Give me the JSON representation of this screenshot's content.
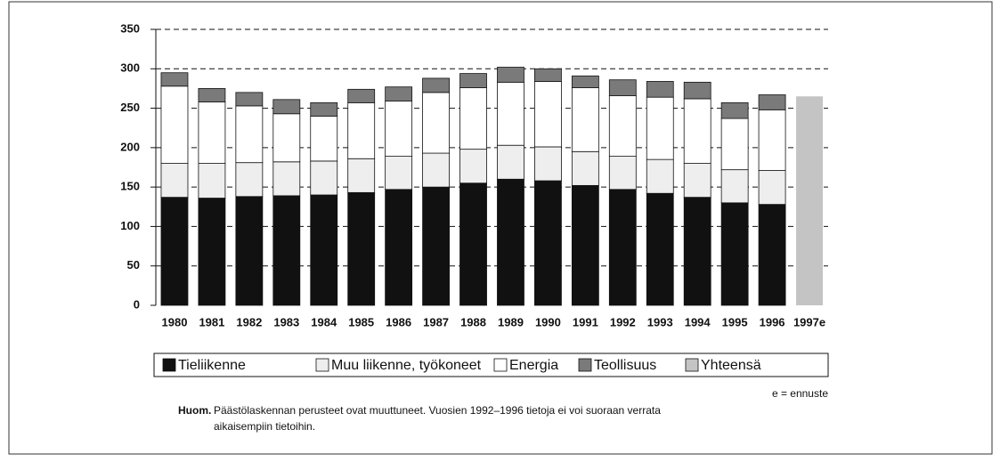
{
  "chart_data": {
    "type": "stacked_bar",
    "categories": [
      "1980",
      "1981",
      "1982",
      "1983",
      "1984",
      "1985",
      "1986",
      "1987",
      "1988",
      "1989",
      "1990",
      "1991",
      "1992",
      "1993",
      "1994",
      "1995",
      "1996",
      "1997e"
    ],
    "series": [
      {
        "name": "Tieliikenne",
        "color": "#111111",
        "values": [
          137,
          136,
          138,
          139,
          140,
          143,
          147,
          150,
          155,
          160,
          158,
          152,
          147,
          142,
          137,
          130,
          128,
          null
        ]
      },
      {
        "name": "Muu liikenne, työkoneet",
        "color": "#eeeeee",
        "values": [
          43,
          44,
          43,
          43,
          43,
          43,
          42,
          43,
          43,
          43,
          43,
          43,
          42,
          43,
          43,
          42,
          43,
          null
        ]
      },
      {
        "name": "Energia",
        "color": "#ffffff",
        "values": [
          98,
          78,
          72,
          61,
          57,
          71,
          70,
          77,
          78,
          80,
          83,
          81,
          77,
          79,
          82,
          65,
          77,
          null
        ]
      },
      {
        "name": "Teollisuus",
        "color": "#7a7a7a",
        "values": [
          17,
          17,
          17,
          18,
          17,
          17,
          18,
          18,
          18,
          19,
          16,
          15,
          20,
          20,
          21,
          20,
          19,
          null
        ]
      },
      {
        "name": "Yhteensä",
        "color": "#c4c4c4",
        "values": [
          null,
          null,
          null,
          null,
          null,
          null,
          null,
          null,
          null,
          null,
          null,
          null,
          null,
          null,
          null,
          null,
          null,
          265
        ]
      }
    ],
    "ylim": [
      0,
      350
    ],
    "yticks": [
      0,
      50,
      100,
      150,
      200,
      250,
      300,
      350
    ],
    "grid": true,
    "legend": "bottom",
    "annotation": "e = ennuste",
    "note_label": "Huom.",
    "note": "Päästölaskennan perusteet ovat muuttuneet. Vuosien 1992–1996 tietoja ei voi suoraan verrata",
    "note_cont": "aikaisempiin tietoihin."
  }
}
